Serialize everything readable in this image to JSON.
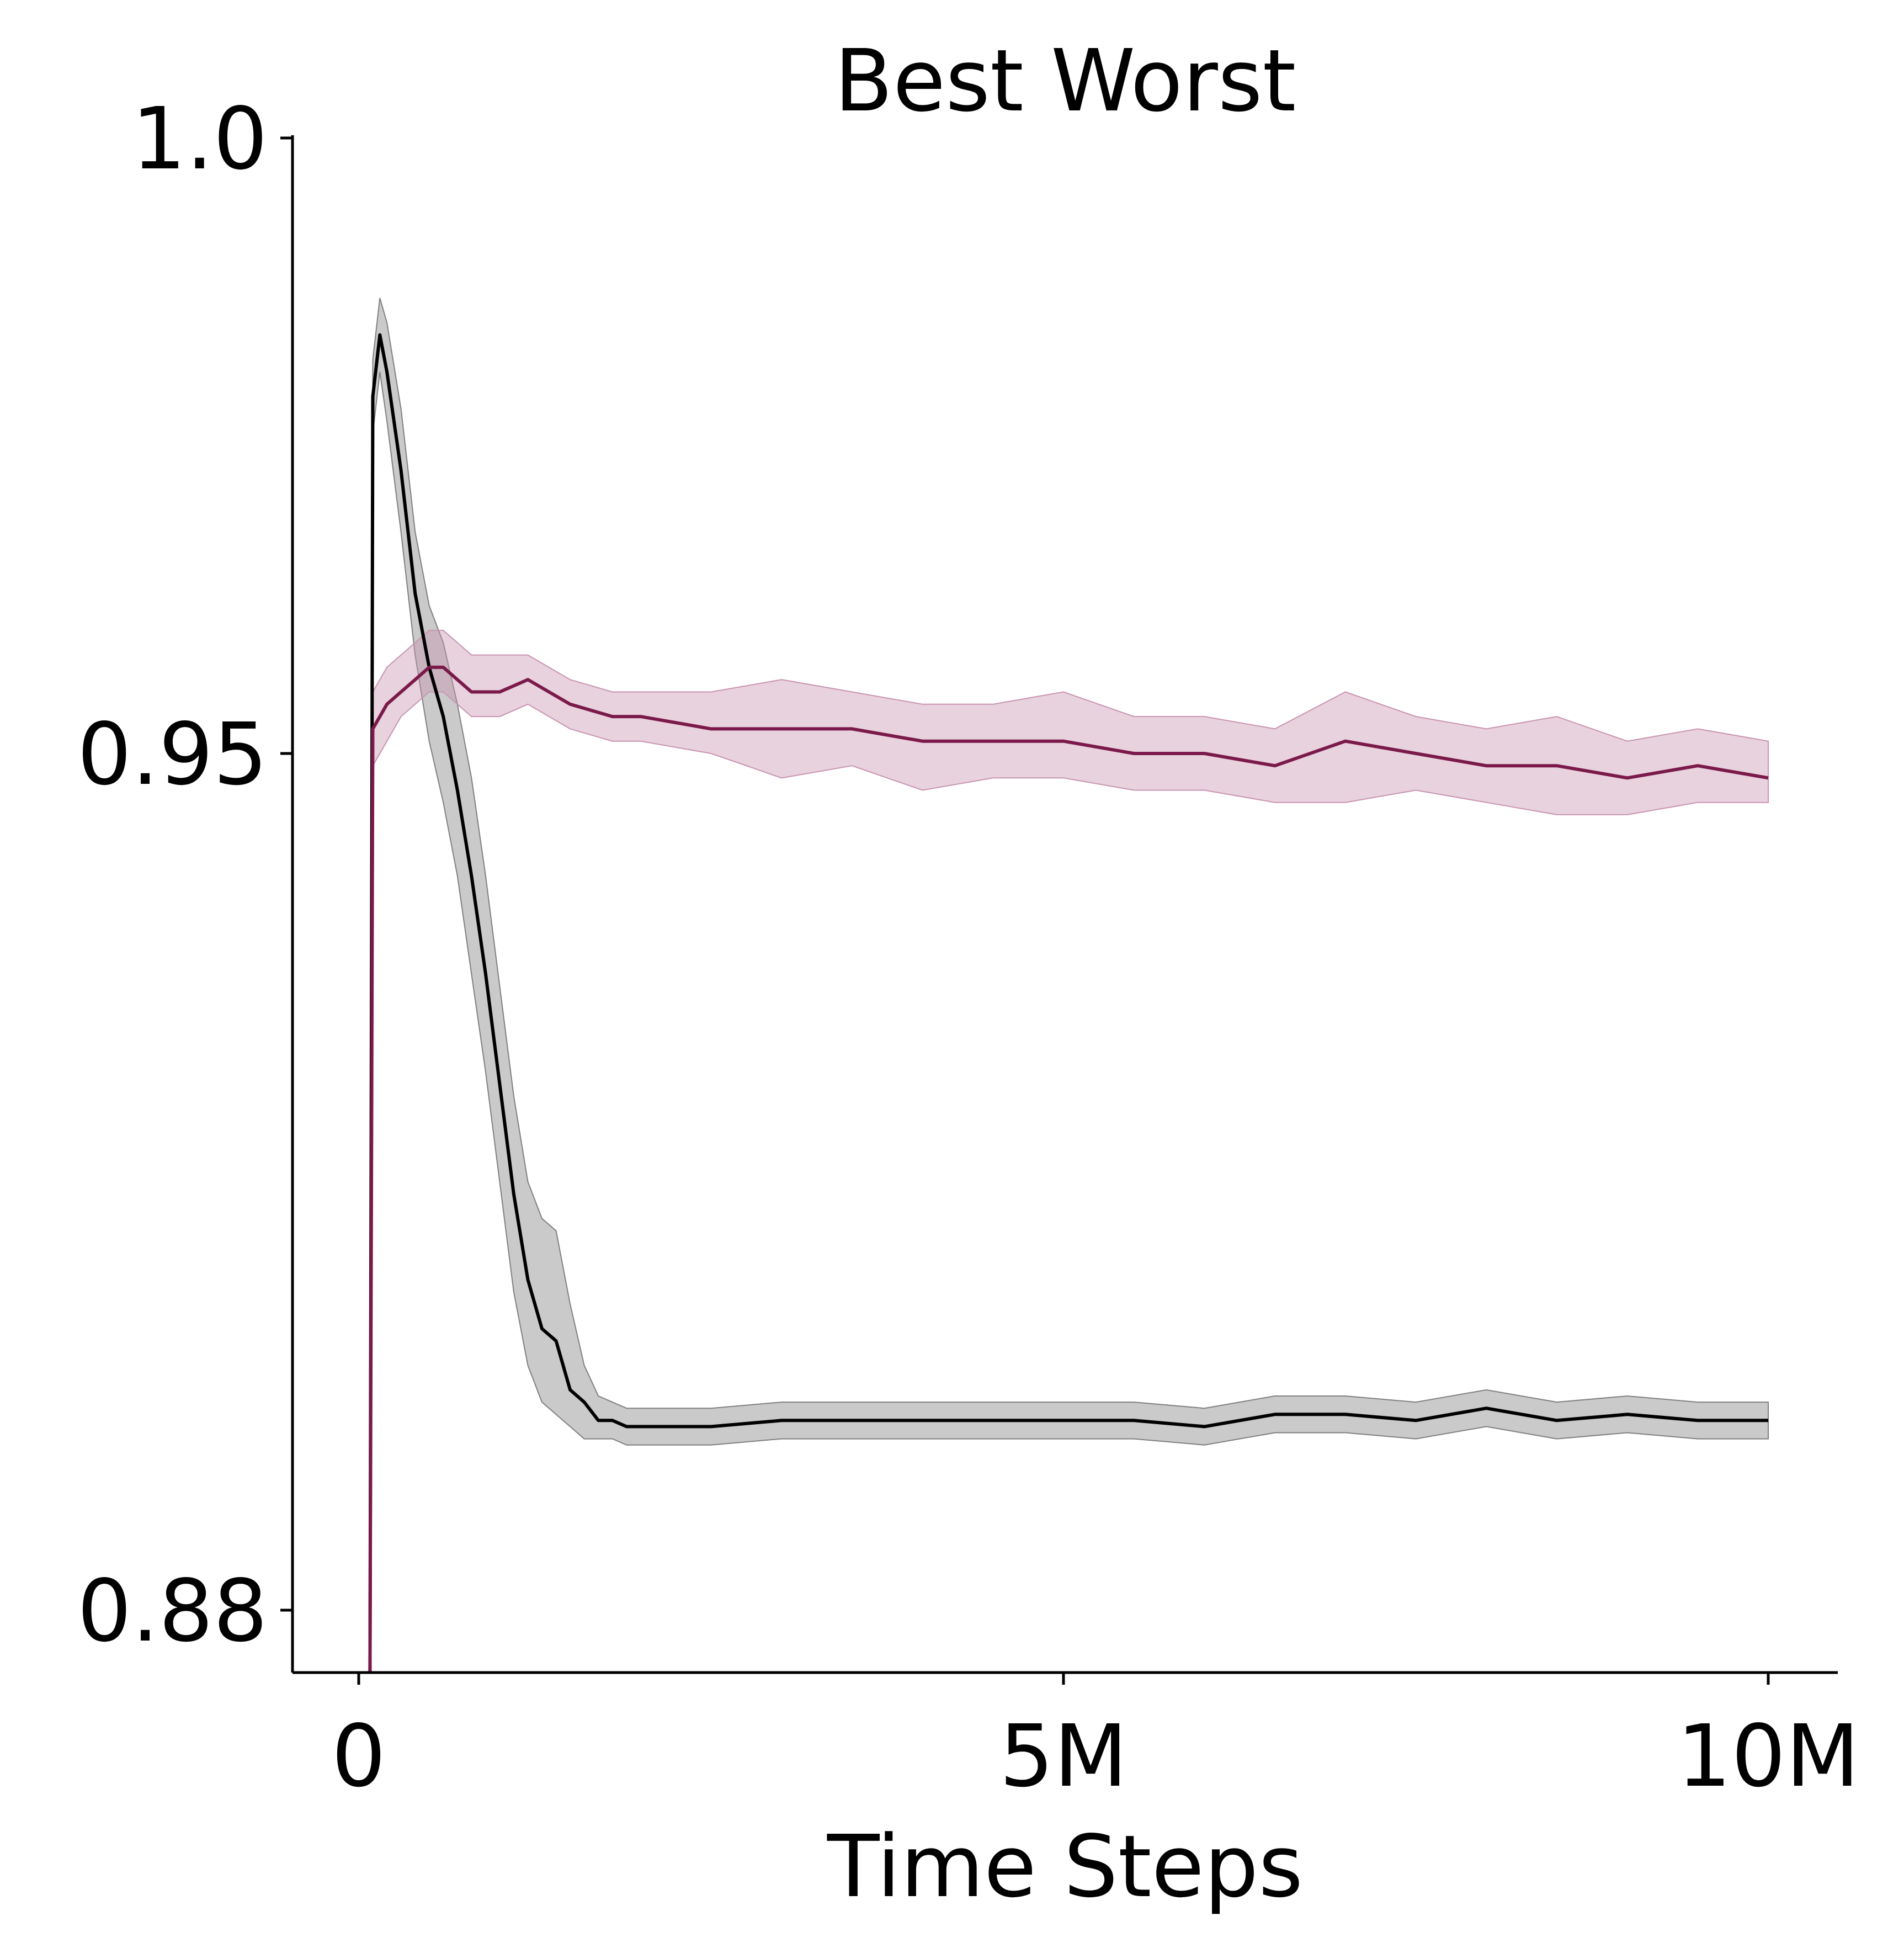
{
  "chart_data": {
    "type": "line",
    "title": "Best Worst",
    "xlabel": "Time Steps",
    "ylabel": "",
    "xlim": [
      -500000,
      10500000
    ],
    "ylim": [
      0.875,
      1.0
    ],
    "grid": false,
    "legend": "none",
    "x_ticks": [
      {
        "value": 0,
        "label": "0"
      },
      {
        "value": 5000000,
        "label": "5M"
      },
      {
        "value": 10000000,
        "label": "10M"
      }
    ],
    "y_ticks": [
      {
        "value": 1.0,
        "label": "1.0"
      },
      {
        "value": 0.95,
        "label": "0.95"
      },
      {
        "value": 0.88,
        "label": "0.88"
      }
    ],
    "series": [
      {
        "color": "#000000",
        "band_color": "#808080",
        "x": [
          80000,
          100000,
          150000,
          200000,
          300000,
          400000,
          500000,
          600000,
          700000,
          800000,
          900000,
          1000000,
          1100000,
          1200000,
          1300000,
          1400000,
          1500000,
          1600000,
          1700000,
          1800000,
          1900000,
          2000000,
          2500000,
          3000000,
          3500000,
          4000000,
          4500000,
          5000000,
          5500000,
          6000000,
          6500000,
          7000000,
          7500000,
          8000000,
          8500000,
          9000000,
          9500000,
          10000000
        ],
        "values": [
          0.875,
          0.979,
          0.984,
          0.981,
          0.973,
          0.963,
          0.957,
          0.953,
          0.947,
          0.94,
          0.932,
          0.923,
          0.914,
          0.907,
          0.903,
          0.902,
          0.898,
          0.897,
          0.8955,
          0.8955,
          0.895,
          0.895,
          0.895,
          0.8955,
          0.8955,
          0.8955,
          0.8955,
          0.8955,
          0.8955,
          0.895,
          0.896,
          0.896,
          0.8955,
          0.8965,
          0.8955,
          0.896,
          0.8955,
          0.8955
        ],
        "lower": [
          0.875,
          0.976,
          0.981,
          0.977,
          0.968,
          0.958,
          0.951,
          0.946,
          0.94,
          0.932,
          0.924,
          0.915,
          0.906,
          0.9,
          0.897,
          0.896,
          0.895,
          0.894,
          0.894,
          0.894,
          0.8935,
          0.8935,
          0.8935,
          0.894,
          0.894,
          0.894,
          0.894,
          0.894,
          0.894,
          0.8935,
          0.8945,
          0.8945,
          0.894,
          0.895,
          0.894,
          0.8945,
          0.894,
          0.894
        ],
        "upper": [
          0.875,
          0.982,
          0.987,
          0.985,
          0.978,
          0.968,
          0.962,
          0.959,
          0.954,
          0.948,
          0.94,
          0.931,
          0.922,
          0.915,
          0.912,
          0.911,
          0.905,
          0.9,
          0.8975,
          0.897,
          0.8965,
          0.8965,
          0.8965,
          0.897,
          0.897,
          0.897,
          0.897,
          0.897,
          0.897,
          0.8965,
          0.8975,
          0.8975,
          0.897,
          0.898,
          0.897,
          0.8975,
          0.897,
          0.897
        ]
      },
      {
        "color": "#7b1a4a",
        "band_color": "#c994b1",
        "x": [
          80000,
          100000,
          150000,
          200000,
          300000,
          400000,
          500000,
          600000,
          700000,
          800000,
          1000000,
          1200000,
          1500000,
          1800000,
          2000000,
          2500000,
          3000000,
          3500000,
          4000000,
          4500000,
          5000000,
          5500000,
          6000000,
          6500000,
          7000000,
          7500000,
          8000000,
          8500000,
          9000000,
          9500000,
          10000000
        ],
        "values": [
          0.875,
          0.952,
          0.953,
          0.954,
          0.955,
          0.956,
          0.957,
          0.957,
          0.956,
          0.955,
          0.955,
          0.956,
          0.954,
          0.953,
          0.953,
          0.952,
          0.952,
          0.952,
          0.951,
          0.951,
          0.951,
          0.95,
          0.95,
          0.949,
          0.951,
          0.95,
          0.949,
          0.949,
          0.948,
          0.949,
          0.948
        ],
        "lower": [
          0.875,
          0.949,
          0.95,
          0.951,
          0.953,
          0.954,
          0.955,
          0.955,
          0.954,
          0.953,
          0.953,
          0.954,
          0.952,
          0.951,
          0.951,
          0.95,
          0.948,
          0.949,
          0.947,
          0.948,
          0.948,
          0.947,
          0.947,
          0.946,
          0.946,
          0.947,
          0.946,
          0.945,
          0.945,
          0.946,
          0.946
        ],
        "upper": [
          0.875,
          0.955,
          0.956,
          0.957,
          0.958,
          0.959,
          0.96,
          0.96,
          0.959,
          0.958,
          0.958,
          0.958,
          0.956,
          0.955,
          0.955,
          0.955,
          0.956,
          0.955,
          0.954,
          0.954,
          0.955,
          0.953,
          0.953,
          0.952,
          0.955,
          0.953,
          0.952,
          0.953,
          0.951,
          0.952,
          0.951
        ]
      }
    ]
  }
}
